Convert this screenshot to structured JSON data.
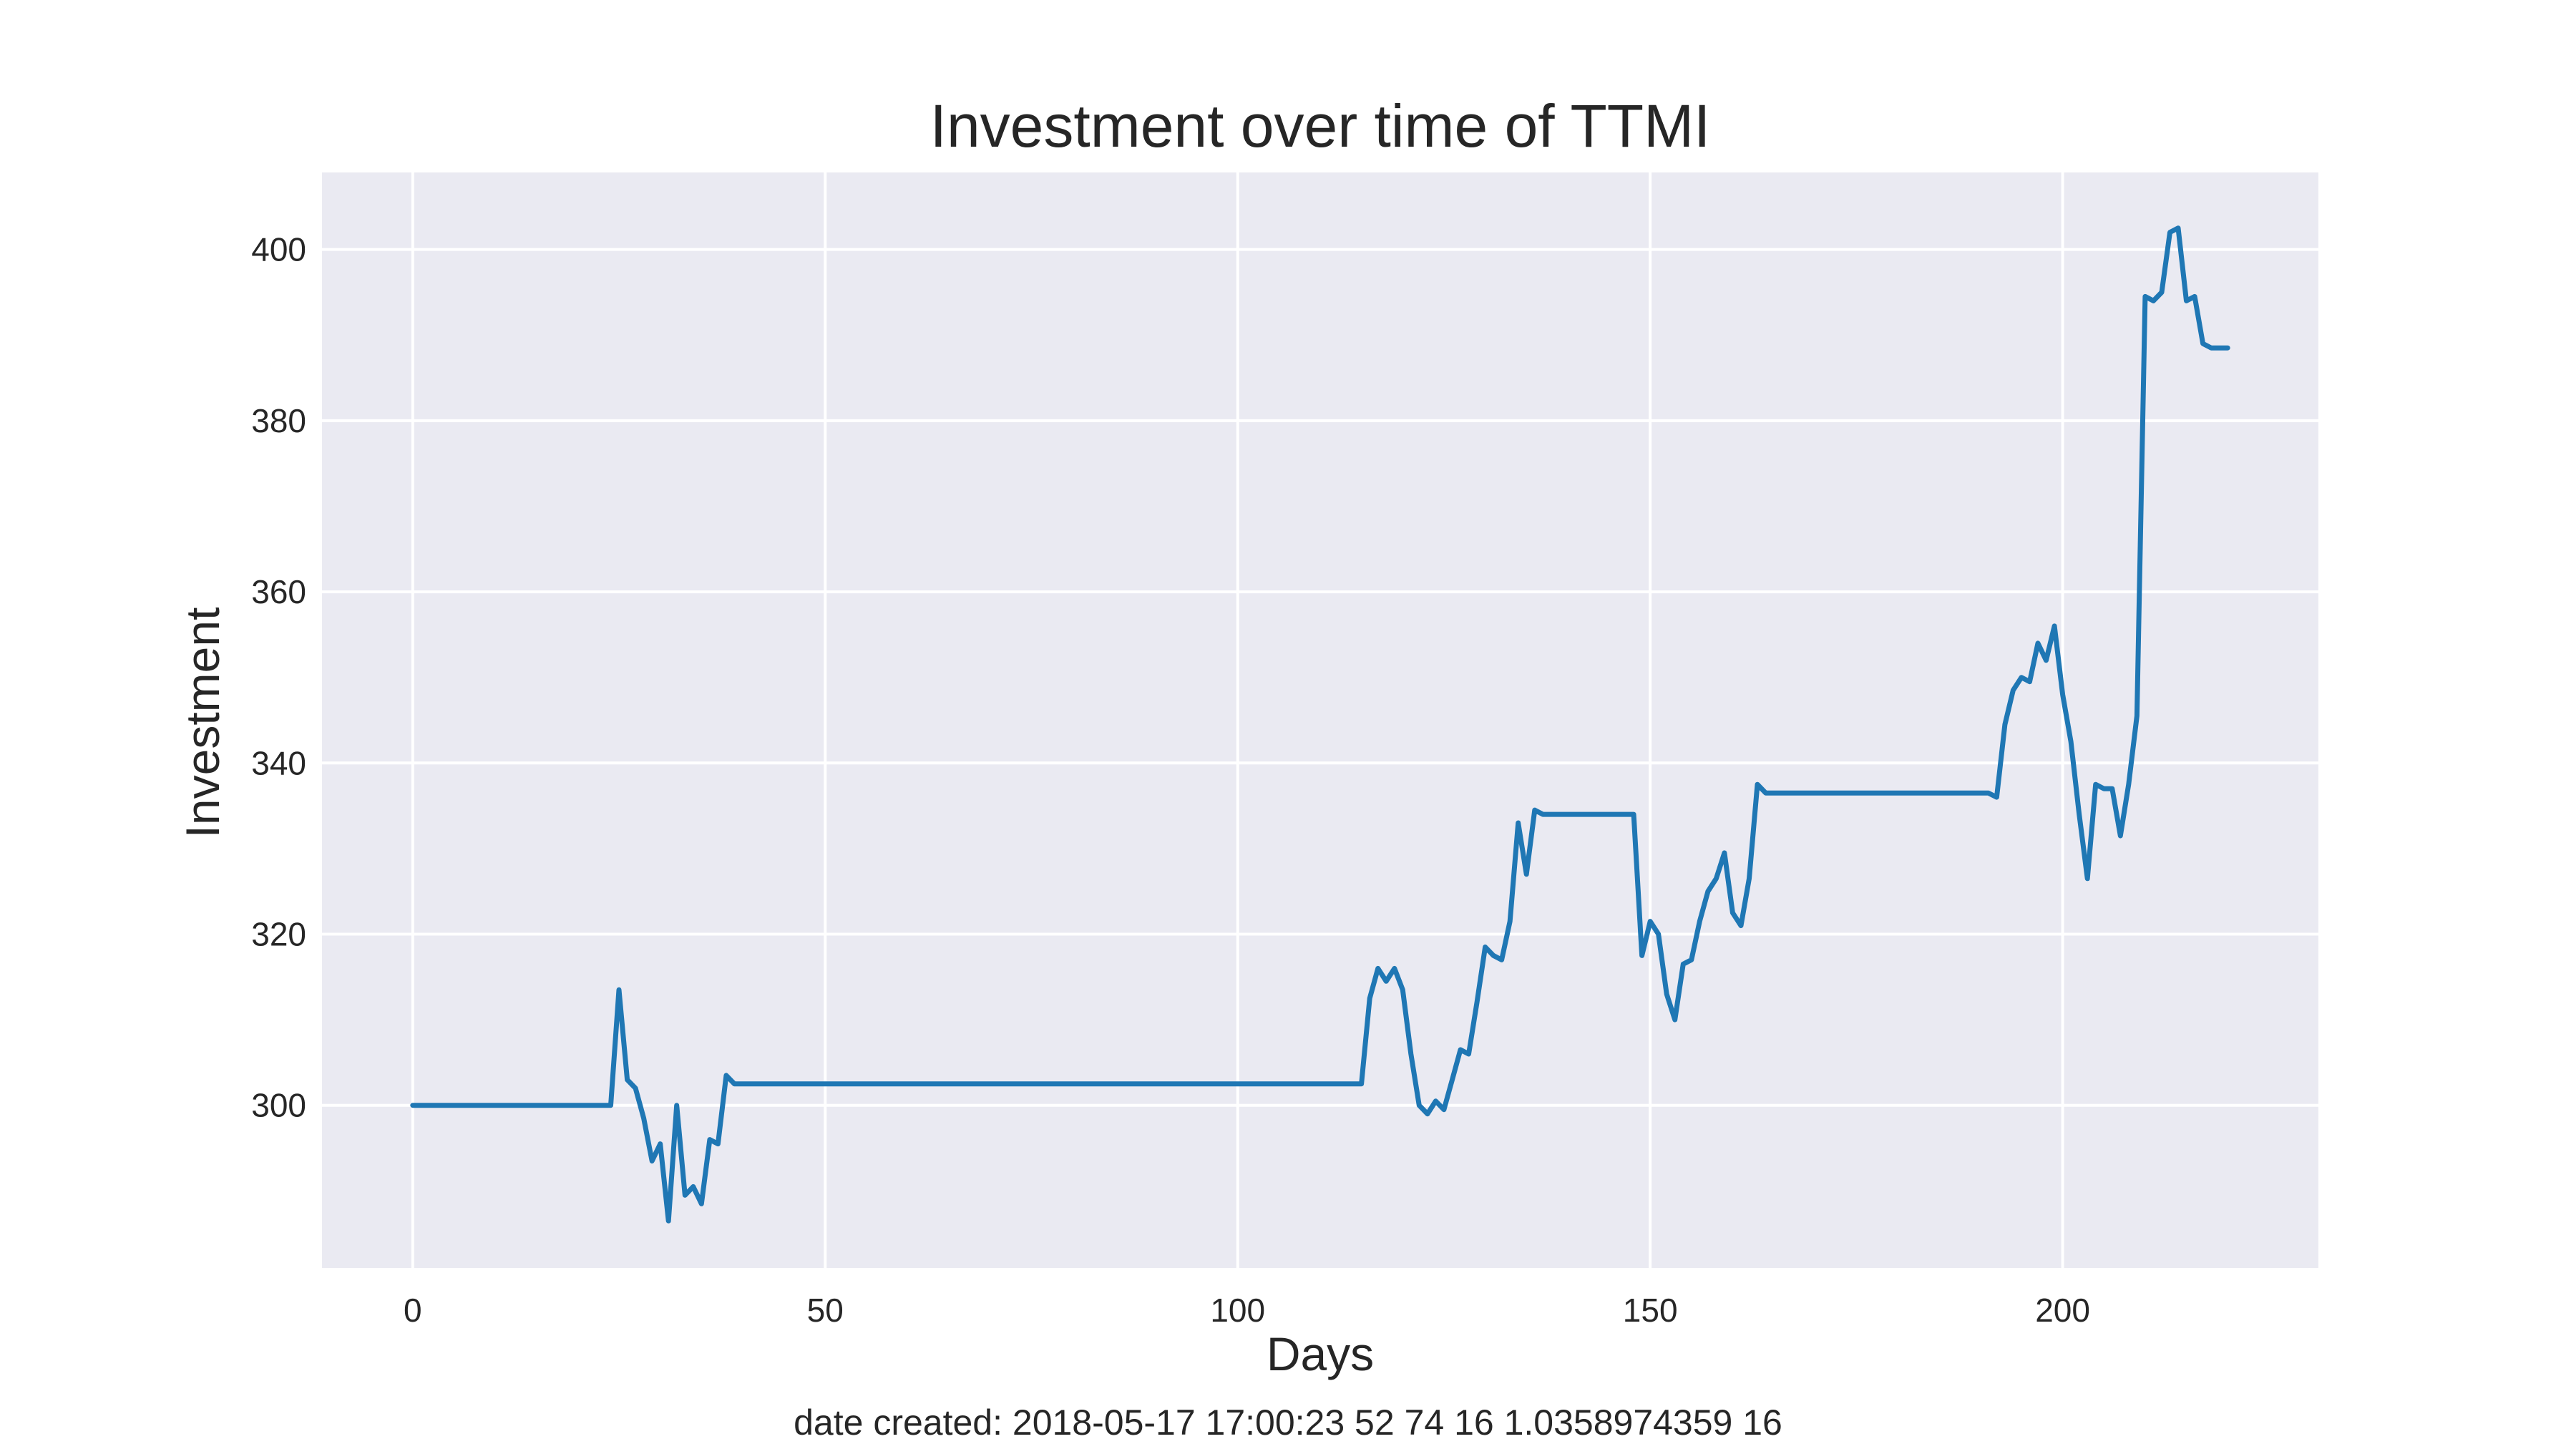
{
  "chart_data": {
    "type": "line",
    "title": "Investment over time of TTMI",
    "xlabel": "Days",
    "ylabel": "Investment",
    "caption": "date created: 2018-05-17 17:00:23 52 74 16 1.0358974359 16",
    "xlim": [
      -11,
      231
    ],
    "ylim": [
      281,
      409
    ],
    "xticks": [
      0,
      50,
      100,
      150,
      200
    ],
    "yticks": [
      300,
      320,
      340,
      360,
      380,
      400
    ],
    "grid": true,
    "colors": {
      "background": "#eaeaf2",
      "grid": "#ffffff",
      "line": "#1f77b4"
    },
    "series": [
      {
        "x": [
          0,
          24,
          25,
          26,
          27,
          28,
          29,
          30,
          31,
          32,
          33,
          34,
          35,
          36,
          37,
          38,
          39,
          115,
          116,
          117,
          118,
          119,
          120,
          121,
          122,
          123,
          124,
          125,
          126,
          127,
          128,
          129,
          130,
          131,
          132,
          133,
          134,
          135,
          136,
          137,
          148,
          149,
          150,
          151,
          152,
          153,
          154,
          155,
          156,
          157,
          158,
          159,
          160,
          161,
          162,
          163,
          164,
          191,
          192,
          193,
          194,
          195,
          196,
          197,
          198,
          199,
          200,
          201,
          202,
          203,
          204,
          205,
          206,
          207,
          208,
          209,
          210,
          211,
          212,
          213,
          214,
          215,
          216,
          217,
          218,
          219,
          220
        ],
        "y": [
          300,
          300,
          313.5,
          303,
          302,
          298.5,
          293.5,
          295.5,
          286.5,
          300,
          289.5,
          290.5,
          288.5,
          296,
          295.5,
          303.5,
          302.5,
          302.5,
          312.5,
          316,
          314.5,
          316,
          313.5,
          306,
          300,
          299,
          300.5,
          299.5,
          303,
          306.5,
          306,
          312,
          318.5,
          317.5,
          317,
          321.5,
          333,
          327,
          334.5,
          334,
          334,
          317.5,
          321.5,
          320,
          313,
          310,
          316.5,
          317,
          321.5,
          325,
          326.5,
          329.5,
          322.5,
          321,
          326.5,
          337.5,
          336.5,
          336.5,
          336,
          344.5,
          348.5,
          350,
          349.5,
          354,
          352,
          356,
          348,
          342.5,
          334,
          326.5,
          337.5,
          337,
          337,
          331.5,
          337.5,
          345.5,
          394.5,
          394,
          395,
          402,
          402.5,
          394,
          394.5,
          389,
          388.5,
          388.5,
          388.5
        ]
      }
    ]
  }
}
